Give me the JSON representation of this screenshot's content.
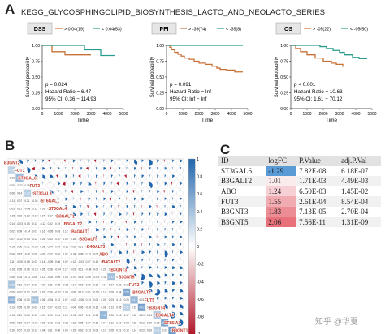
{
  "figure": {
    "panel_a_letter": "A",
    "panel_b_letter": "B",
    "panel_c_letter": "C",
    "title": "KEGG_GLYCOSPHINGOLIPID_BIOSYNTHESIS_LACTO_AND_NEOLACTO_SERIES",
    "watermark": "知乎 @华夏"
  },
  "colors": {
    "high_curve": "#c87137",
    "low_curve": "#2a9d8f",
    "corr_positive": "#2166ac",
    "corr_negative": "#b2182b",
    "logfc_negative": "#5b9bd5",
    "logfc_positive_high": "#e8717b"
  },
  "chart_data": [
    {
      "type": "line",
      "kind": "kaplan-meier",
      "label": "DSS",
      "legend": [
        "> 0.04(19)",
        "< 0.04(53)"
      ],
      "xlabel": "Time",
      "ylabel": "Survival probability",
      "xlim": [
        0,
        5000
      ],
      "ylim": [
        0,
        1
      ],
      "xticks": [
        "0",
        "1000",
        "2000",
        "3000",
        "4000",
        "5000"
      ],
      "yticks": [
        "0.00",
        "0.25",
        "0.50",
        "0.75",
        "1.00"
      ],
      "series": [
        {
          "name": "> 0.04(19)",
          "x": [
            0,
            400,
            600,
            1400,
            1400,
            3000
          ],
          "y": [
            1,
            1,
            0.9,
            0.9,
            0.85,
            0.85
          ]
        },
        {
          "name": "< 0.04(53)",
          "x": [
            0,
            2600,
            2600,
            3600,
            3600,
            4500
          ],
          "y": [
            1,
            1,
            0.93,
            0.93,
            0.84,
            0.84
          ]
        }
      ],
      "annotations": [
        "p = 0.024",
        "Hazard Ratio = 6.47",
        "95% CI: 0.36 − 114.93"
      ]
    },
    {
      "type": "line",
      "kind": "kaplan-meier",
      "label": "PFI",
      "legend": [
        "> -39(74)",
        "< -39(8)"
      ],
      "xlabel": "Time",
      "ylabel": "Survival probability",
      "xlim": [
        0,
        5000
      ],
      "ylim": [
        0,
        1
      ],
      "xticks": [
        "0",
        "1000",
        "2000",
        "3000",
        "4000",
        "5000"
      ],
      "yticks": [
        "0.00",
        "0.25",
        "0.50",
        "0.75",
        "1.00"
      ],
      "series": [
        {
          "name": "> -39(74)",
          "x": [
            0,
            200,
            300,
            500,
            700,
            900,
            1100,
            1400,
            1700,
            2000,
            2400,
            2800,
            3100,
            3300,
            3700,
            4200,
            4700
          ],
          "y": [
            1,
            0.97,
            0.93,
            0.89,
            0.86,
            0.83,
            0.8,
            0.78,
            0.75,
            0.72,
            0.7,
            0.67,
            0.64,
            0.62,
            0.61,
            0.58,
            0.58
          ]
        },
        {
          "name": "< -39(8)",
          "x": [
            0,
            4700
          ],
          "y": [
            1,
            1
          ]
        }
      ],
      "annotations": [
        "p = 0.091",
        "Hazard Ratio = Inf",
        "95% CI: Inf − Inf"
      ]
    },
    {
      "type": "line",
      "kind": "kaplan-meier",
      "label": "OS",
      "legend": [
        "> -05(22)",
        "< -05(50)"
      ],
      "xlabel": "Time",
      "ylabel": "Survival probability",
      "xlim": [
        0,
        5000
      ],
      "ylim": [
        0,
        1
      ],
      "xticks": [
        "0",
        "1000",
        "2000",
        "3000",
        "4000",
        "5000"
      ],
      "yticks": [
        "0.00",
        "0.25",
        "0.50",
        "0.75",
        "1.00"
      ],
      "series": [
        {
          "name": "> -05(22)",
          "x": [
            0,
            300,
            600,
            1000,
            1500,
            2000,
            2500,
            2800,
            3200
          ],
          "y": [
            1,
            0.95,
            0.9,
            0.85,
            0.8,
            0.75,
            0.72,
            0.7,
            0.66
          ]
        },
        {
          "name": "< -05(50)",
          "x": [
            0,
            1800,
            2200,
            2600,
            3000,
            3300,
            3800,
            4200,
            4700
          ],
          "y": [
            1,
            0.98,
            0.95,
            0.92,
            0.89,
            0.85,
            0.81,
            0.79,
            0.79
          ]
        }
      ],
      "annotations": [
        "p < 0.001",
        "Hazard Ratio = 10.63",
        "95% CI: 1.61 − 70.12"
      ]
    },
    {
      "type": "heatmap",
      "kind": "correlation-matrix",
      "variables": [
        "B3GNT2",
        "FUT1",
        "ST3GAL6",
        "FUT3",
        "ST3GAL3",
        "ST6GAL1",
        "ST3GAL4",
        "B3GALT1",
        "B3GALT2",
        "B4GALT1",
        "B3GALT5",
        "B4GALT3",
        "ABO",
        "B4GALT2",
        "B3GNT3",
        "B3GNT5",
        "FUT2",
        "B4GALT4",
        "FUT5",
        "B3GNT4",
        "B3GALT4",
        "ST8SIA1",
        "B3GNT1"
      ],
      "colorbar_ticks": [
        "1",
        "0.8",
        "0.6",
        "0.4",
        "0.2",
        "0",
        "-0.2",
        "-0.4",
        "-0.6",
        "-0.8",
        "-1"
      ],
      "lower_triangle_values": [
        [],
        [
          0.31
        ],
        [
          0.12,
          0.45
        ],
        [
          0.05,
          -0.22,
          0.18
        ],
        [
          0.08,
          0.14,
          0.33,
          0.02
        ],
        [
          -0.11,
          0.07,
          0.21,
          -0.04,
          0.26
        ],
        [
          0.03,
          0.11,
          -0.08,
          0.15,
          0.09,
          0.06
        ],
        [
          -0.06,
          0.02,
          0.13,
          -0.19,
          0.04,
          0.17,
          0.08
        ],
        [
          0.14,
          -0.03,
          0.05,
          0.11,
          -0.12,
          0.02,
          0.19,
          0.25
        ],
        [
          0.02,
          0.09,
          -0.14,
          0.07,
          0.16,
          -0.05,
          0.03,
          0.12,
          0.08
        ],
        [
          0.07,
          -0.12,
          0.04,
          0.22,
          0.01,
          0.13,
          -0.07,
          0.05,
          0.18,
          -0.02
        ],
        [
          -0.09,
          0.06,
          0.11,
          -0.03,
          0.08,
          0.04,
          0.14,
          -0.11,
          0.06,
          0.21,
          0.09
        ],
        [
          0.04,
          0.15,
          -0.02,
          0.09,
          -0.06,
          0.12,
          0.02,
          0.07,
          -0.04,
          0.08,
          0.13,
          0.05
        ],
        [
          0.11,
          -0.05,
          0.08,
          0.03,
          0.14,
          -0.09,
          0.06,
          0.02,
          0.12,
          -0.03,
          0.07,
          0.16,
          0.04
        ],
        [
          -0.02,
          0.09,
          0.06,
          -0.13,
          0.05,
          0.08,
          -0.04,
          0.17,
          0.03,
          0.11,
          -0.08,
          0.02,
          0.21,
          0.06
        ],
        [
          0.06,
          0.03,
          -0.11,
          0.08,
          0.12,
          -0.02,
          0.09,
          0.04,
          -0.07,
          0.15,
          0.05,
          -0.03,
          0.11,
          0.42,
          0.18
        ],
        [
          0.38,
          0.13,
          0.07,
          0.02,
          -0.09,
          0.11,
          0.05,
          -0.06,
          0.14,
          0.03,
          0.09,
          0.12,
          -0.04,
          0.07,
          0.22,
          0.15
        ],
        [
          0.09,
          -0.07,
          0.12,
          0.05,
          0.03,
          0.16,
          -0.02,
          0.08,
          0.06,
          0.13,
          0.01,
          -0.05,
          0.17,
          0.09,
          0.04,
          0.56,
          0.11
        ],
        [
          0.52,
          0.08,
          0.03,
          0.41,
          0.06,
          -0.04,
          0.12,
          0.07,
          0.02,
          -0.08,
          0.14,
          0.05,
          0.09,
          0.03,
          0.13,
          0.26,
          0.47,
          0.21
        ],
        [
          0.13,
          0.05,
          0.09,
          0.02,
          0.15,
          0.07,
          -0.03,
          0.11,
          0.04,
          0.06,
          -0.02,
          0.16,
          0.08,
          0.12,
          0.05,
          0.31,
          0.19,
          0.62,
          0.15
        ],
        [
          -0.04,
          0.11,
          0.06,
          0.13,
          -0.07,
          0.09,
          0.04,
          0.15,
          -0.02,
          0.07,
          0.11,
          0.03,
          0.48,
          0.06,
          0.13,
          0.17,
          0.08,
          0.24,
          0.14,
          0.35
        ],
        [
          0.08,
          0.02,
          0.14,
          -0.05,
          0.09,
          0.03,
          0.18,
          -0.01,
          0.12,
          0.05,
          0.07,
          0.15,
          0.04,
          0.11,
          0.19,
          0.08,
          0.22,
          0.13,
          0.09,
          0.28,
          0.58
        ],
        [
          0.16,
          0.07,
          0.03,
          0.12,
          0.04,
          0.11,
          0.06,
          0.09,
          0.15,
          0.02,
          0.13,
          0.08,
          0.17,
          0.05,
          0.21,
          0.12,
          0.14,
          0.23,
          0.19,
          0.31,
          0.27,
          0.66
        ]
      ]
    },
    {
      "type": "table",
      "columns": [
        "ID",
        "logFC",
        "P.Value",
        "adj.P.Val"
      ],
      "rows": [
        [
          "ST3GAL6",
          "-1.29",
          "7.82E-08",
          "6.18E-07"
        ],
        [
          "B3GALT2",
          "1.01",
          "1.71E-03",
          "4.49E-03"
        ],
        [
          "ABO",
          "1.24",
          "6.50E-03",
          "1.45E-02"
        ],
        [
          "FUT3",
          "1.55",
          "2.61E-04",
          "8.54E-04"
        ],
        [
          "B3GNT3",
          "1.83",
          "7.13E-05",
          "2.70E-04"
        ],
        [
          "B3GNT5",
          "2.06",
          "7.56E-11",
          "1.31E-09"
        ]
      ],
      "logfc_values": [
        -1.29,
        1.01,
        1.24,
        1.55,
        1.83,
        2.06
      ]
    }
  ]
}
